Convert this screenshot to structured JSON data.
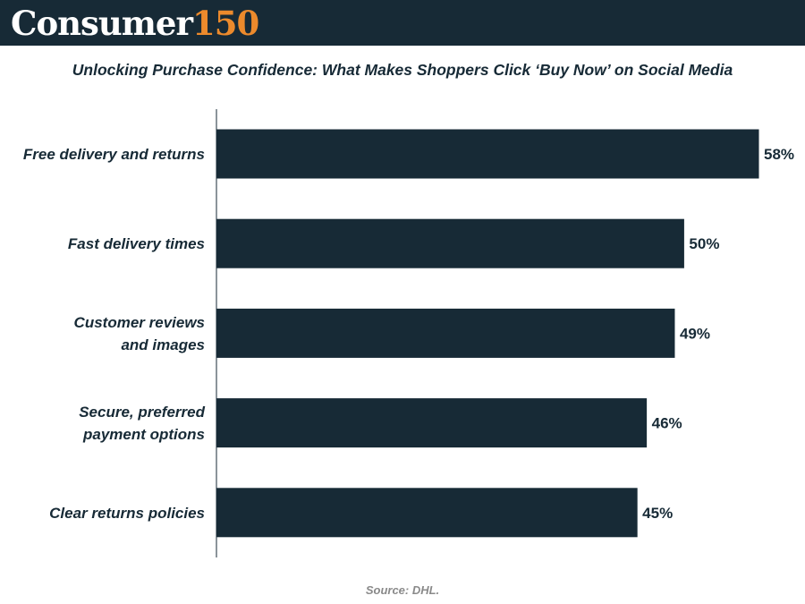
{
  "brand": {
    "word": "Consumer",
    "number": "150"
  },
  "chart_data": {
    "type": "bar",
    "orientation": "horizontal",
    "title": "Unlocking Purchase Confidence: What Makes Shoppers Click ‘Buy Now’ on Social Media",
    "categories": [
      "Free delivery and returns",
      "Fast delivery times",
      "Customer reviews and images",
      "Secure, preferred payment options",
      "Clear returns policies"
    ],
    "category_lines": [
      [
        "Free delivery and returns"
      ],
      [
        "Fast delivery times"
      ],
      [
        "Customer reviews",
        "and images"
      ],
      [
        "Secure, preferred",
        "payment options"
      ],
      [
        "Clear returns policies"
      ]
    ],
    "values": [
      58,
      50,
      49,
      46,
      45
    ],
    "value_labels": [
      "58%",
      "50%",
      "49%",
      "46%",
      "45%"
    ],
    "unit": "%",
    "xlim": [
      0,
      60
    ],
    "grid": false,
    "bar_color": "#172a36"
  },
  "source": "Source: DHL.",
  "colors": {
    "header_bg": "#172a36",
    "accent": "#ec8a2c",
    "bar": "#172a36",
    "source_text": "#8a8a8a"
  }
}
